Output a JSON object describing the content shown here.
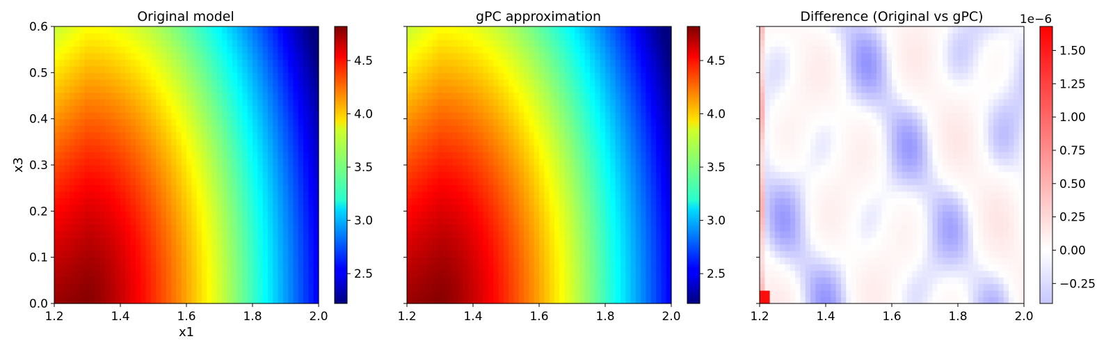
{
  "chart_data": [
    {
      "type": "heatmap",
      "title": "Original model",
      "xlabel": "x1",
      "ylabel": "x3",
      "xlim": [
        1.2,
        2.0
      ],
      "ylim": [
        0.0,
        0.6
      ],
      "xticks": [
        "1.2",
        "1.4",
        "1.6",
        "1.8",
        "2.0"
      ],
      "yticks": [
        "0.0",
        "0.1",
        "0.2",
        "0.3",
        "0.4",
        "0.5",
        "0.6"
      ],
      "colormap": "jet",
      "colorbar": {
        "range": [
          2.22,
          4.82
        ],
        "ticks": [
          "2.5",
          "3.0",
          "3.5",
          "4.0",
          "4.5"
        ],
        "tick_values": [
          2.5,
          3.0,
          3.5,
          4.0,
          4.5
        ],
        "offset_label": ""
      },
      "grid": false
    },
    {
      "type": "heatmap",
      "title": "gPC approximation",
      "xlabel": "",
      "ylabel": "",
      "xlim": [
        1.2,
        2.0
      ],
      "ylim": [
        0.0,
        0.6
      ],
      "xticks": [
        "1.2",
        "1.4",
        "1.6",
        "1.8",
        "2.0"
      ],
      "yticks": [],
      "colormap": "jet",
      "colorbar": {
        "range": [
          2.22,
          4.82
        ],
        "ticks": [
          "2.5",
          "3.0",
          "3.5",
          "4.0",
          "4.5"
        ],
        "tick_values": [
          2.5,
          3.0,
          3.5,
          4.0,
          4.5
        ],
        "offset_label": ""
      },
      "grid": false
    },
    {
      "type": "heatmap",
      "title": "Difference (Original vs gPC)",
      "xlabel": "",
      "ylabel": "",
      "xlim": [
        1.2,
        2.0
      ],
      "ylim": [
        0.0,
        0.6
      ],
      "xticks": [
        "1.2",
        "1.4",
        "1.6",
        "1.8",
        "2.0"
      ],
      "yticks": [],
      "colormap": "bwr",
      "colorbar": {
        "range": [
          -0.4,
          1.68
        ],
        "ticks": [
          "−0.25",
          "0.00",
          "0.25",
          "0.50",
          "0.75",
          "1.00",
          "1.25",
          "1.50"
        ],
        "tick_values": [
          -0.25,
          0.0,
          0.25,
          0.5,
          0.75,
          1.0,
          1.25,
          1.5
        ],
        "offset_label": "1e−6"
      },
      "grid": false
    }
  ]
}
